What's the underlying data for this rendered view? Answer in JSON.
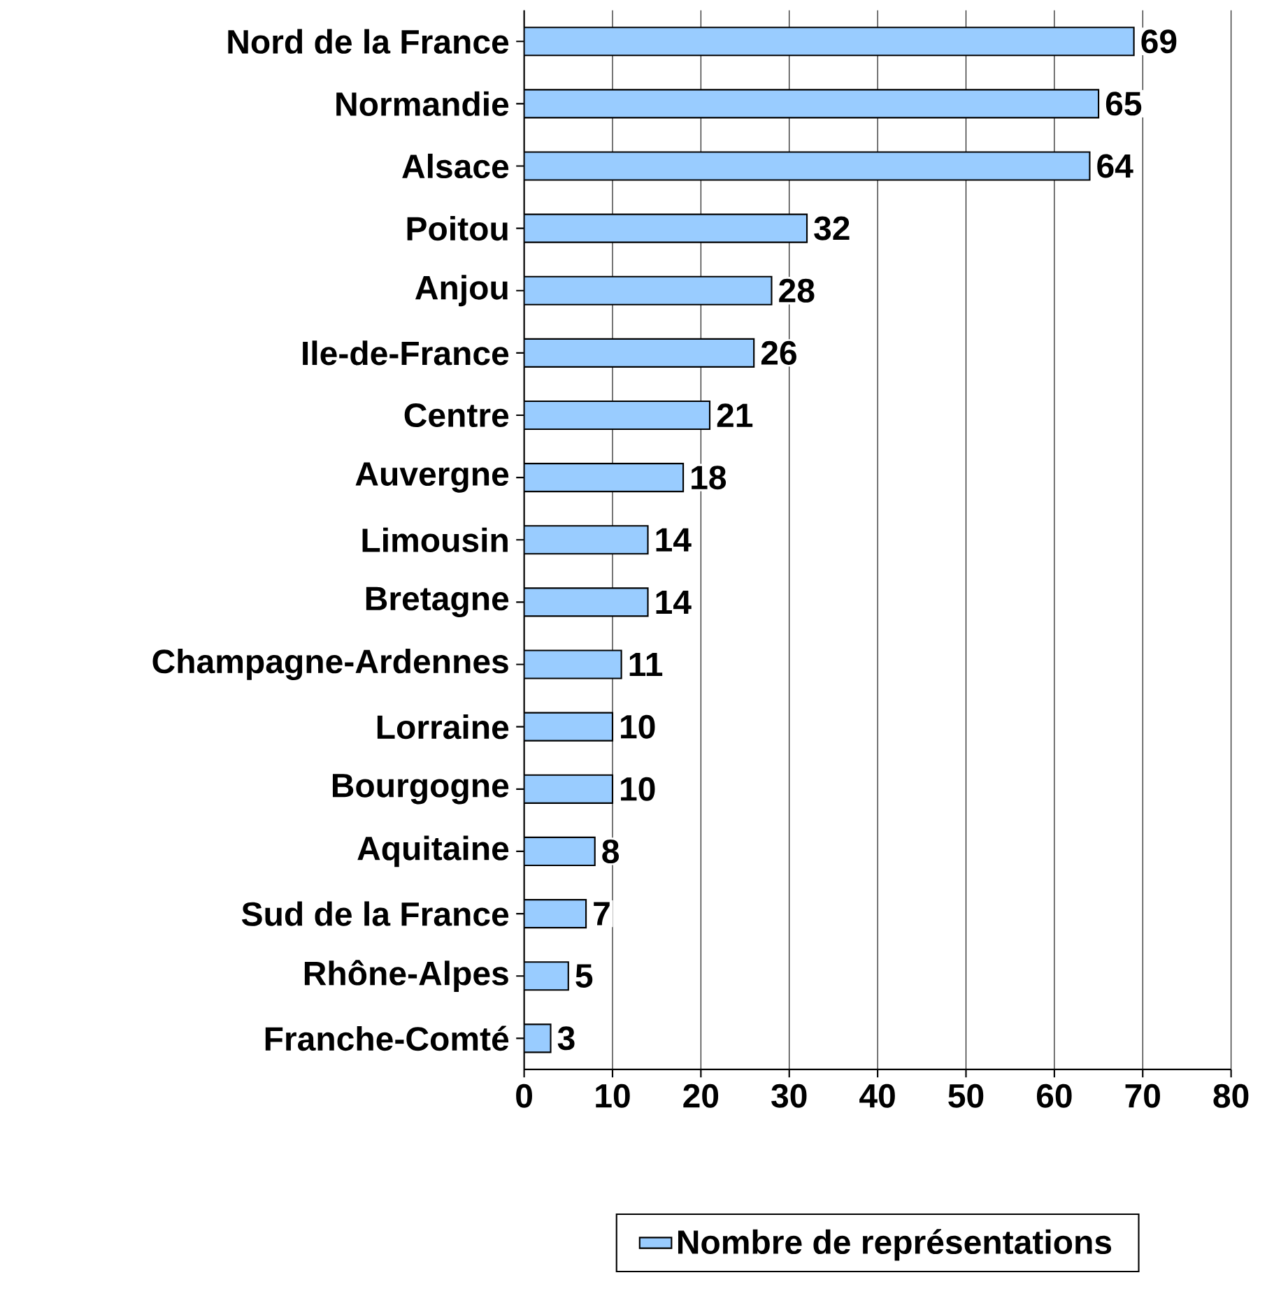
{
  "chart_data": {
    "type": "bar",
    "orientation": "horizontal",
    "categories": [
      "Nord de la France",
      "Normandie",
      "Alsace",
      "Poitou",
      "Anjou",
      "Ile-de-France",
      "Centre",
      "Auvergne",
      "Limousin",
      "Bretagne",
      "Champagne-Ardennes",
      "Lorraine",
      "Bourgogne",
      "Aquitaine",
      "Sud de la France",
      "Rhône-Alpes",
      "Franche-Comté"
    ],
    "series": [
      {
        "name": "Nombre de représentations",
        "color": "#99ccff",
        "values": [
          69,
          65,
          64,
          32,
          28,
          26,
          21,
          18,
          14,
          14,
          11,
          10,
          10,
          8,
          7,
          5,
          3
        ]
      }
    ],
    "xlim": [
      0,
      80
    ],
    "xticks": [
      0,
      10,
      20,
      30,
      40,
      50,
      60,
      70,
      80
    ],
    "grid": "x",
    "legend": "bottom",
    "data_labels": true
  }
}
